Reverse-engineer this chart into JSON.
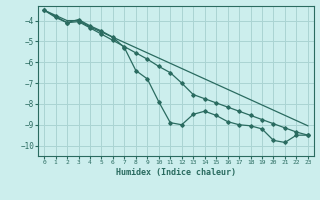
{
  "xlabel": "Humidex (Indice chaleur)",
  "background_color": "#cceeed",
  "grid_color": "#aad4d3",
  "line_color": "#2a6b60",
  "xlim": [
    -0.5,
    23.5
  ],
  "ylim": [
    -10.5,
    -3.3
  ],
  "yticks": [
    -10,
    -9,
    -8,
    -7,
    -6,
    -5,
    -4
  ],
  "xticks": [
    0,
    1,
    2,
    3,
    4,
    5,
    6,
    7,
    8,
    9,
    10,
    11,
    12,
    13,
    14,
    15,
    16,
    17,
    18,
    19,
    20,
    21,
    22,
    23
  ],
  "s1_y": [
    -3.5,
    -3.75,
    -4.0,
    -4.0,
    -4.3,
    -4.55,
    -4.8,
    -5.05,
    -5.3,
    -5.55,
    -5.8,
    -6.05,
    -6.3,
    -6.55,
    -6.8,
    -7.05,
    -7.3,
    -7.55,
    -7.8,
    -8.05,
    -8.3,
    -8.55,
    -8.8,
    -9.05
  ],
  "s2_y": [
    -3.5,
    -3.8,
    -4.1,
    -3.95,
    -4.25,
    -4.5,
    -4.8,
    -5.3,
    -6.4,
    -6.8,
    -7.9,
    -8.9,
    -9.0,
    -8.5,
    -8.35,
    -8.55,
    -8.85,
    -9.0,
    -9.05,
    -9.2,
    -9.75,
    -9.85,
    -9.5,
    -9.5
  ],
  "s3_y": [
    -3.5,
    -3.85,
    -4.1,
    -4.05,
    -4.35,
    -4.65,
    -4.95,
    -5.25,
    -5.55,
    -5.85,
    -6.2,
    -6.5,
    -7.0,
    -7.55,
    -7.75,
    -7.95,
    -8.15,
    -8.35,
    -8.55,
    -8.75,
    -8.95,
    -9.15,
    -9.35,
    -9.5
  ]
}
